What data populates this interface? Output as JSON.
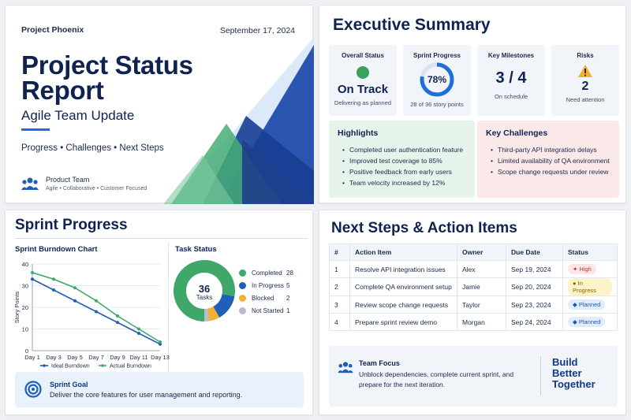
{
  "title_card": {
    "project_name": "Project Phoenix",
    "date": "September 17, 2024",
    "title_line1": "Project Status",
    "title_line2": "Report",
    "subtitle": "Agile Team Update",
    "tags": "Progress • Challenges • Next Steps",
    "team_name": "Product Team",
    "team_desc": "Agile • Collaborative • Customer Focused",
    "colors": {
      "navy": "#0f2250",
      "accent_blue": "#1f6fd6",
      "green": "#3aa35b"
    }
  },
  "executive_summary": {
    "title": "Executive Summary",
    "overall_status": {
      "label": "Overall Status",
      "value": "On Track",
      "sub": "Delivering as planned",
      "icon": "green-dot-icon"
    },
    "sprint_progress": {
      "label": "Sprint Progress",
      "value": "78%",
      "percent": 78,
      "sub": "28 of 36 story points"
    },
    "milestones": {
      "label": "Key Milestones",
      "value": "3 / 4",
      "sub": "On schedule"
    },
    "risks": {
      "label": "Risks",
      "value": "2",
      "sub": "Need attention",
      "icon": "warning-icon"
    },
    "highlights": {
      "title": "Highlights",
      "items": [
        "Completed user authentication feature",
        "Improved test coverage to 85%",
        "Positive feedback from early users",
        "Team velocity increased by 12%"
      ]
    },
    "challenges": {
      "title": "Key Challenges",
      "items": [
        "Third-party API integration delays",
        "Limited availability of QA environment",
        "Scope change requests under review"
      ]
    }
  },
  "sprint": {
    "title": "Sprint Progress",
    "burndown_title": "Sprint Burndown Chart",
    "task_status_title": "Task Status",
    "goal_title": "Sprint Goal",
    "goal_text": "Deliver the core features for user management and reporting."
  },
  "chart_data": [
    {
      "type": "line",
      "title": "Sprint Burndown Chart",
      "xlabel": "",
      "ylabel": "Story Points",
      "x": [
        "Day 1",
        "Day 3",
        "Day 5",
        "Day 7",
        "Day 9",
        "Day 11",
        "Day 13"
      ],
      "ylim": [
        0,
        40
      ],
      "yticks": [
        0,
        10,
        20,
        30,
        40
      ],
      "grid": true,
      "legend_position": "bottom",
      "series": [
        {
          "name": "Ideal Burndown",
          "color": "#1f5fb8",
          "values": [
            33,
            28,
            23,
            18,
            13,
            8,
            3
          ]
        },
        {
          "name": "Actual Burndown",
          "color": "#3fa868",
          "values": [
            36,
            33,
            29,
            23,
            16,
            10,
            4
          ]
        }
      ]
    },
    {
      "type": "pie",
      "title": "Task Status",
      "center_value": "36",
      "center_label": "Tasks",
      "slices": [
        {
          "name": "Completed",
          "value": 28,
          "color": "#3fa868"
        },
        {
          "name": "In Progress",
          "value": 5,
          "color": "#1f5fb8"
        },
        {
          "name": "Blocked",
          "value": 2,
          "color": "#f2b134"
        },
        {
          "name": "Not Started",
          "value": 1,
          "color": "#b8bec9"
        }
      ]
    }
  ],
  "next_steps": {
    "title": "Next Steps & Action Items",
    "columns": [
      "#",
      "Action Item",
      "Owner",
      "Due Date",
      "Status"
    ],
    "rows": [
      {
        "num": "1",
        "item": "Resolve API integration issues",
        "owner": "Alex",
        "due": "Sep 19, 2024",
        "status": "High",
        "kind": "high"
      },
      {
        "num": "2",
        "item": "Complete QA environment setup",
        "owner": "Jamie",
        "due": "Sep 20, 2024",
        "status": "In Progress",
        "kind": "prog"
      },
      {
        "num": "3",
        "item": "Review scope change requests",
        "owner": "Taylor",
        "due": "Sep 23, 2024",
        "status": "Planned",
        "kind": "plan"
      },
      {
        "num": "4",
        "item": "Prepare sprint review demo",
        "owner": "Morgan",
        "due": "Sep 24, 2024",
        "status": "Planned",
        "kind": "plan"
      }
    ],
    "focus_title": "Team Focus",
    "focus_text": "Unblock dependencies, complete current sprint, and prepare for the next iteration.",
    "slogan_line1": "Build",
    "slogan_line2": "Better",
    "slogan_line3": "Together"
  }
}
